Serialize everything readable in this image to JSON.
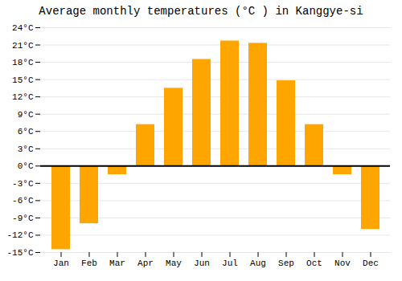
{
  "chart_data": {
    "type": "bar",
    "title": "Average monthly temperatures (°C ) in Kanggye-si",
    "categories": [
      "Jan",
      "Feb",
      "Mar",
      "Apr",
      "May",
      "Jun",
      "Jul",
      "Aug",
      "Sep",
      "Oct",
      "Nov",
      "Dec"
    ],
    "values": [
      -14.5,
      -10.0,
      -1.5,
      7.2,
      13.5,
      18.5,
      21.7,
      21.3,
      14.8,
      7.2,
      -1.5,
      -11.0
    ],
    "color": "#FFA500",
    "ylim": [
      -15,
      24
    ],
    "yticks": [
      {
        "value": -15,
        "label": "-15°C"
      },
      {
        "value": -12,
        "label": "-12°C"
      },
      {
        "value": -9,
        "label": "-9°C"
      },
      {
        "value": -6,
        "label": "-6°C"
      },
      {
        "value": -3,
        "label": "-3°C"
      },
      {
        "value": 0,
        "label": "0°C"
      },
      {
        "value": 3,
        "label": "3°C"
      },
      {
        "value": 6,
        "label": "6°C"
      },
      {
        "value": 9,
        "label": "9°C"
      },
      {
        "value": 12,
        "label": "12°C"
      },
      {
        "value": 15,
        "label": "15°C"
      },
      {
        "value": 18,
        "label": "18°C"
      },
      {
        "value": 21,
        "label": "21°C"
      },
      {
        "value": 24,
        "label": "24°C"
      }
    ],
    "grid": true
  }
}
